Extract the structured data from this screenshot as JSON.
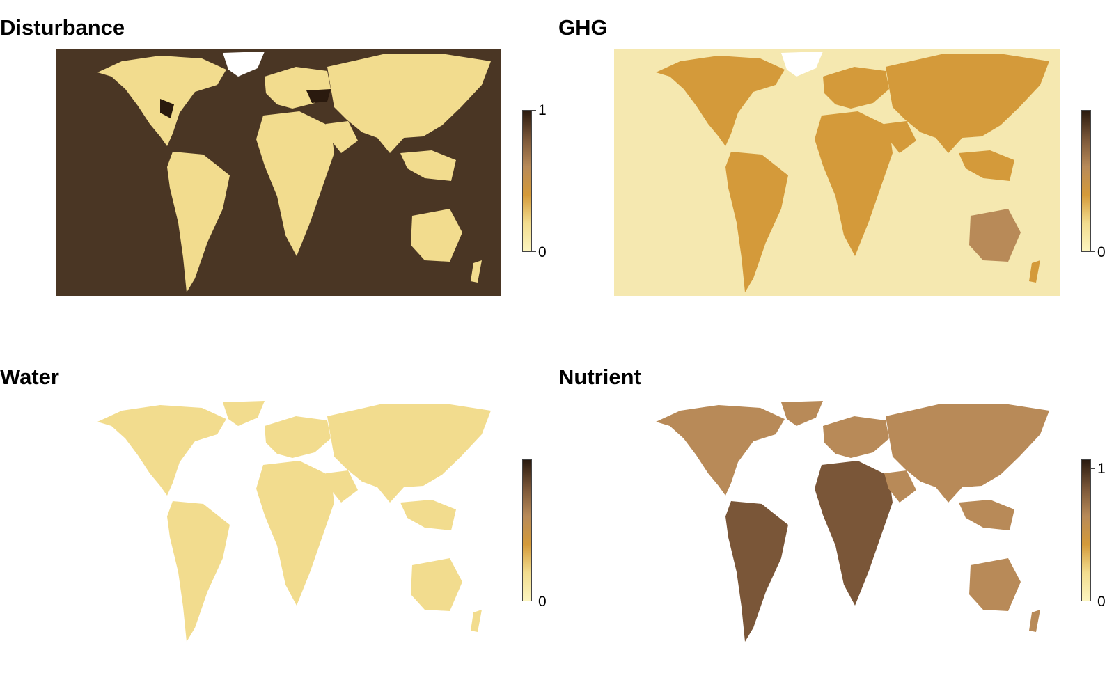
{
  "colors": {
    "ramp": [
      "#fcf5c0",
      "#f2dc8e",
      "#d49a3a",
      "#b88a58",
      "#7a5638",
      "#2a1a0e"
    ],
    "ocean_dark": "#4a3624",
    "land_light": "#f7eab0",
    "ghg_ocean": "#f5e8b0",
    "ice": "#ffffff"
  },
  "panels": [
    {
      "title": "Disturbance",
      "legend_max": "1",
      "legend_min": "0",
      "ocean": "dark",
      "land_level": 0.15
    },
    {
      "title": "GHG",
      "legend_max": "",
      "legend_min": "0",
      "ocean": "light",
      "land_level": 0.45
    },
    {
      "title": "Water",
      "legend_max": "",
      "legend_min": "0",
      "ocean": "none",
      "land_level": 0.1
    },
    {
      "title": "Nutrient",
      "legend_max": "1",
      "legend_min": "0",
      "ocean": "none",
      "land_level": 0.55
    }
  ]
}
